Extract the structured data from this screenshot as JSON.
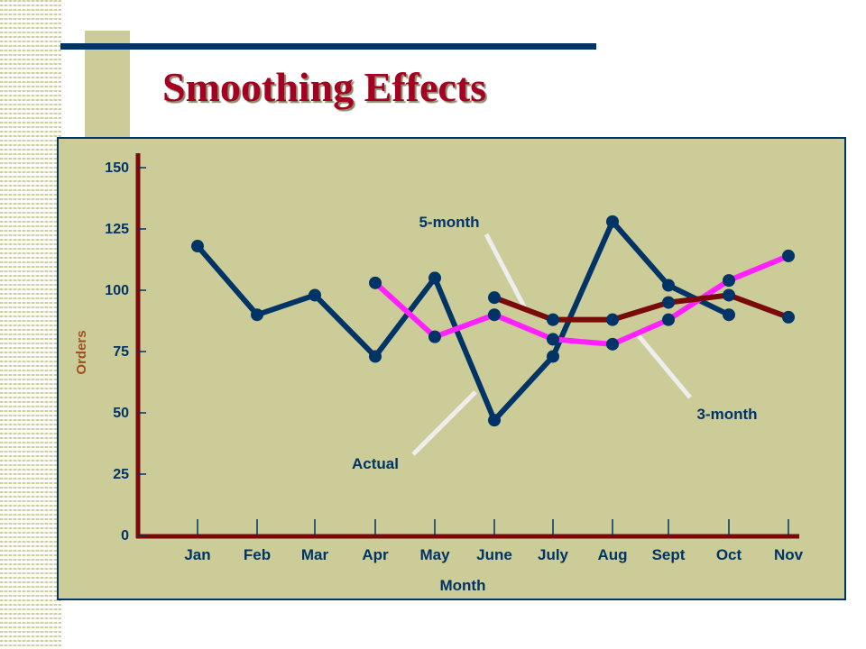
{
  "slide": {
    "title": "Smoothing Effects"
  },
  "chart_data": {
    "type": "line",
    "title": "",
    "xlabel": "Month",
    "ylabel": "Orders",
    "ylim": [
      0,
      150
    ],
    "yticks": [
      0,
      25,
      50,
      75,
      100,
      125,
      150
    ],
    "categories": [
      "Jan",
      "Feb",
      "Mar",
      "Apr",
      "May",
      "June",
      "July",
      "Aug",
      "Sept",
      "Oct",
      "Nov"
    ],
    "series": [
      {
        "name": "Actual",
        "color": "#003366",
        "values": [
          118,
          90,
          98,
          73,
          105,
          47,
          73,
          128,
          102,
          90,
          null
        ]
      },
      {
        "name": "3-month",
        "color": "#ff22ff",
        "values": [
          null,
          null,
          null,
          103,
          81,
          90,
          80,
          78,
          88,
          104,
          114
        ]
      },
      {
        "name": "5-month",
        "color": "#7a0a0a",
        "values": [
          null,
          null,
          null,
          null,
          null,
          97,
          88,
          88,
          95,
          98,
          89
        ]
      }
    ],
    "grid": false,
    "legend": "callout labels"
  },
  "colors": {
    "title": "#a50021",
    "panel": "#cccc99",
    "axis": "#7a0a0a",
    "label_text": "#003366",
    "callout_line": "#eeeeee"
  }
}
